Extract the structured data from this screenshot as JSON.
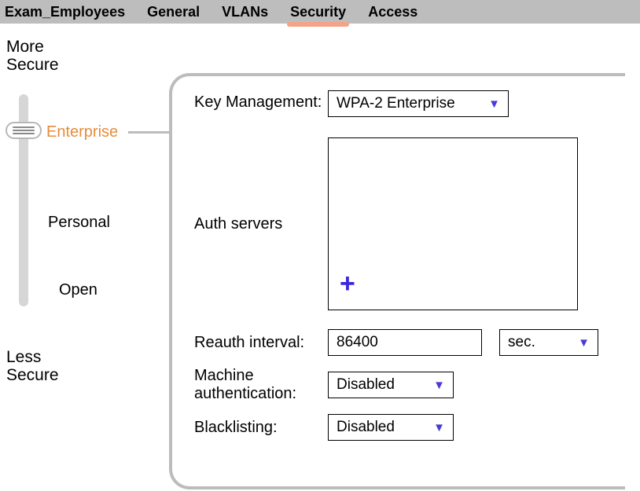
{
  "tabs": {
    "name": "Exam_Employees",
    "items": [
      "General",
      "VLANs",
      "Security",
      "Access"
    ],
    "active_index": 2
  },
  "slider": {
    "top_label_line1": "More",
    "top_label_line2": "Secure",
    "bottom_label_line1": "Less",
    "bottom_label_line2": "Secure",
    "levels": {
      "enterprise": "Enterprise",
      "personal": "Personal",
      "open": "Open"
    },
    "selected": "enterprise",
    "track_color": "#d6d6d6",
    "selected_color": "#e48d3e"
  },
  "panel": {
    "key_management": {
      "label": "Key Management:",
      "value": "WPA-2 Enterprise"
    },
    "auth_servers": {
      "label": "Auth servers",
      "items": [],
      "add_icon_color": "#3a27e0"
    },
    "reauth": {
      "label": "Reauth interval:",
      "value": "86400",
      "unit": "sec."
    },
    "machine_auth": {
      "label_line1": "Machine",
      "label_line2": "authentication:",
      "value": "Disabled"
    },
    "blacklisting": {
      "label": "Blacklisting:",
      "value": "Disabled"
    }
  },
  "colors": {
    "tabbar_bg": "#bdbdbd",
    "active_underline": "#f4a387",
    "chevron": "#4a3bd6",
    "border": "#000000",
    "panel_border": "#bcbcbc"
  }
}
